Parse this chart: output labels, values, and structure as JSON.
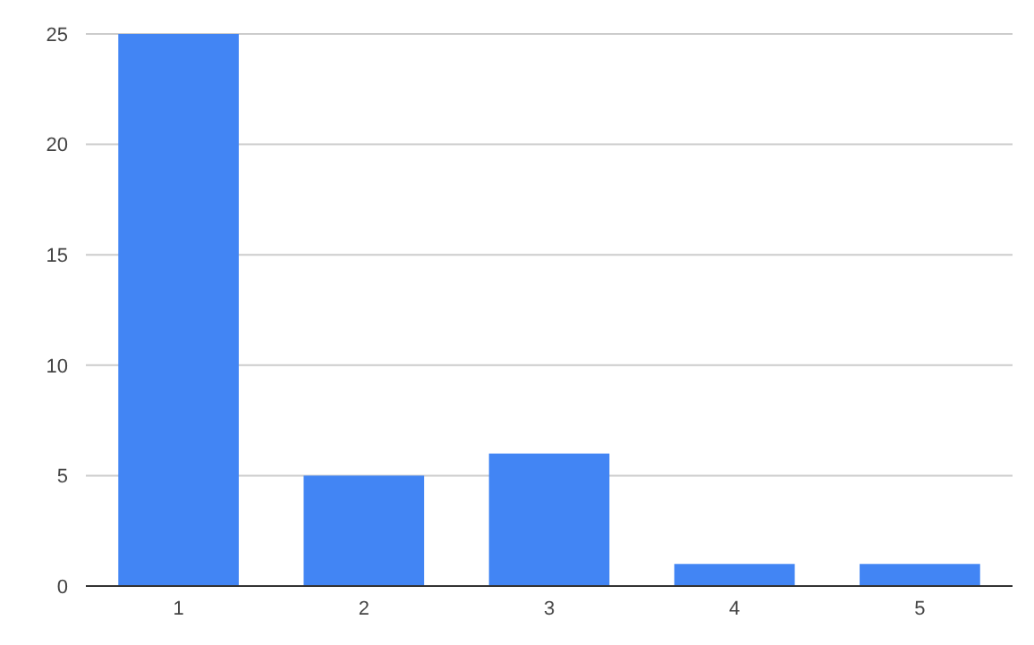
{
  "chart_data": {
    "type": "bar",
    "categories": [
      "1",
      "2",
      "3",
      "4",
      "5"
    ],
    "values": [
      25,
      5,
      6,
      1,
      1
    ],
    "color": "#4285f4",
    "ylim": [
      0,
      25
    ],
    "yticks": [
      0,
      5,
      10,
      15,
      20,
      25
    ],
    "grid": "y"
  }
}
